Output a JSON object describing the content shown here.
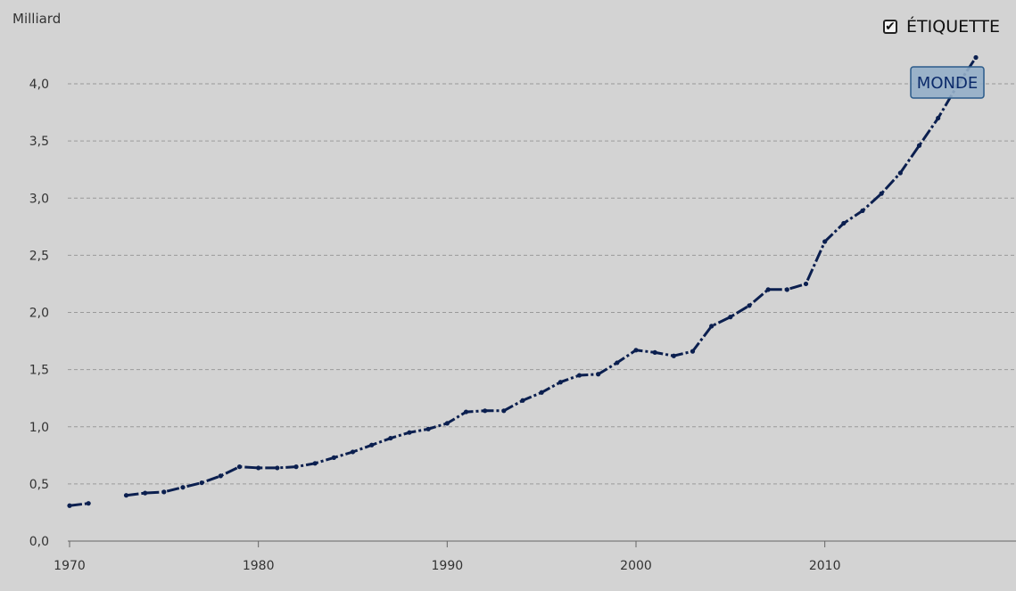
{
  "legend": {
    "checkbox_label": "ÉTIQUETTE",
    "checked_glyph": "✔"
  },
  "chart_data": {
    "type": "line",
    "unit_label": "Milliard",
    "xlim": [
      1970,
      2018
    ],
    "ylim": [
      0,
      4.2
    ],
    "x_ticks": [
      {
        "value": 1970,
        "label": "1970"
      },
      {
        "value": 1980,
        "label": "1980"
      },
      {
        "value": 1990,
        "label": "1990"
      },
      {
        "value": 2000,
        "label": "2000"
      },
      {
        "value": 2010,
        "label": "2010"
      }
    ],
    "y_ticks": [
      {
        "value": 0,
        "label": "0,0"
      },
      {
        "value": 0.5,
        "label": "0,5"
      },
      {
        "value": 1,
        "label": "1,0"
      },
      {
        "value": 1.5,
        "label": "1,5"
      },
      {
        "value": 2,
        "label": "2,0"
      },
      {
        "value": 2.5,
        "label": "2,5"
      },
      {
        "value": 3,
        "label": "3,0"
      },
      {
        "value": 3.5,
        "label": "3,5"
      },
      {
        "value": 4,
        "label": "4,0"
      }
    ],
    "grid": true,
    "series": [
      {
        "name": "MONDE",
        "color": "#0b1f4f",
        "label_fill": "#93aec8",
        "label_border": "#2b5b8a",
        "label_text_color": "#0b2a6a",
        "points": [
          [
            1970,
            0.31
          ],
          [
            1971,
            0.33
          ],
          [
            1972,
            null
          ],
          [
            1973,
            0.4
          ],
          [
            1974,
            0.42
          ],
          [
            1975,
            0.43
          ],
          [
            1976,
            0.47
          ],
          [
            1977,
            0.51
          ],
          [
            1978,
            0.57
          ],
          [
            1979,
            0.65
          ],
          [
            1980,
            0.64
          ],
          [
            1981,
            0.64
          ],
          [
            1982,
            0.65
          ],
          [
            1983,
            0.68
          ],
          [
            1984,
            0.73
          ],
          [
            1985,
            0.78
          ],
          [
            1986,
            0.84
          ],
          [
            1987,
            0.9
          ],
          [
            1988,
            0.95
          ],
          [
            1989,
            0.98
          ],
          [
            1990,
            1.03
          ],
          [
            1991,
            1.13
          ],
          [
            1992,
            1.14
          ],
          [
            1993,
            1.14
          ],
          [
            1994,
            1.23
          ],
          [
            1995,
            1.3
          ],
          [
            1996,
            1.39
          ],
          [
            1997,
            1.45
          ],
          [
            1998,
            1.46
          ],
          [
            1999,
            1.56
          ],
          [
            2000,
            1.67
          ],
          [
            2001,
            1.65
          ],
          [
            2002,
            1.62
          ],
          [
            2003,
            1.66
          ],
          [
            2004,
            1.88
          ],
          [
            2005,
            1.96
          ],
          [
            2006,
            2.06
          ],
          [
            2007,
            2.2
          ],
          [
            2008,
            2.2
          ],
          [
            2009,
            2.25
          ],
          [
            2010,
            2.62
          ],
          [
            2011,
            2.78
          ],
          [
            2012,
            2.89
          ],
          [
            2013,
            3.04
          ],
          [
            2014,
            3.22
          ],
          [
            2015,
            3.46
          ],
          [
            2016,
            3.7
          ],
          [
            2017,
            3.98
          ],
          [
            2018,
            4.23
          ]
        ]
      }
    ]
  }
}
